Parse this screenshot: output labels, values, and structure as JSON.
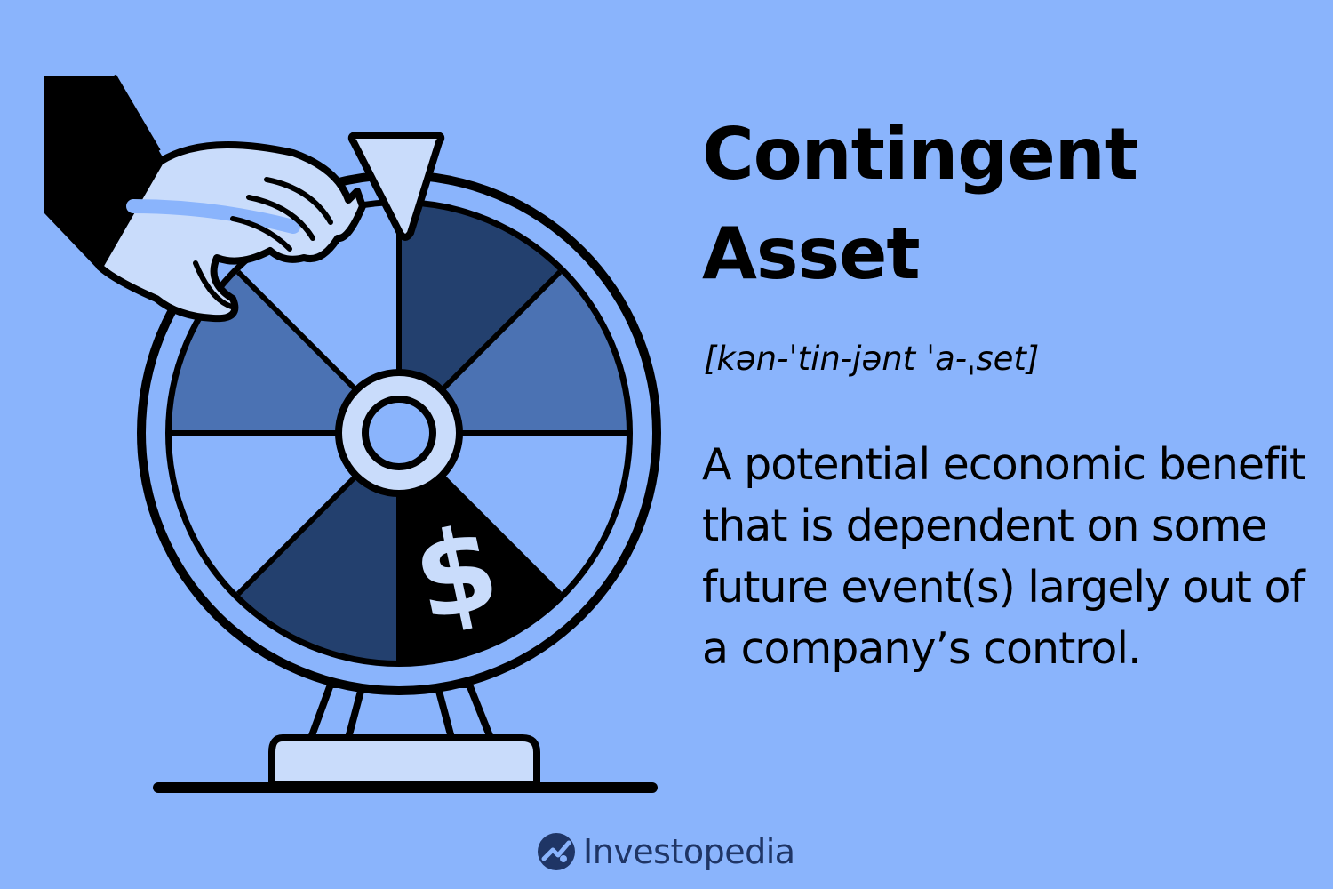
{
  "heading": {
    "line1": "Contingent",
    "line2": "Asset"
  },
  "pronunciation": "[kən-ˈtin-jənt ˈa-ˌset]",
  "definition": "A potential economic benefit that is dependent on some future event(s) largely out of a company’s control.",
  "illustration": {
    "segment_symbol": "$",
    "icons": [
      "prize-wheel-icon",
      "hand-icon",
      "pointer-icon",
      "dollar-icon"
    ]
  },
  "brand": {
    "name": "Investopedia",
    "logo_icon": "investopedia-logo-icon"
  },
  "colors": {
    "background": "#8ab4fc",
    "segment_dark": "#23406e",
    "segment_mid": "#4b72b3",
    "segment_light": "#8ab4fc",
    "segment_black": "#000000",
    "pale": "#c9dcfb",
    "brand_text": "#1f3565"
  }
}
